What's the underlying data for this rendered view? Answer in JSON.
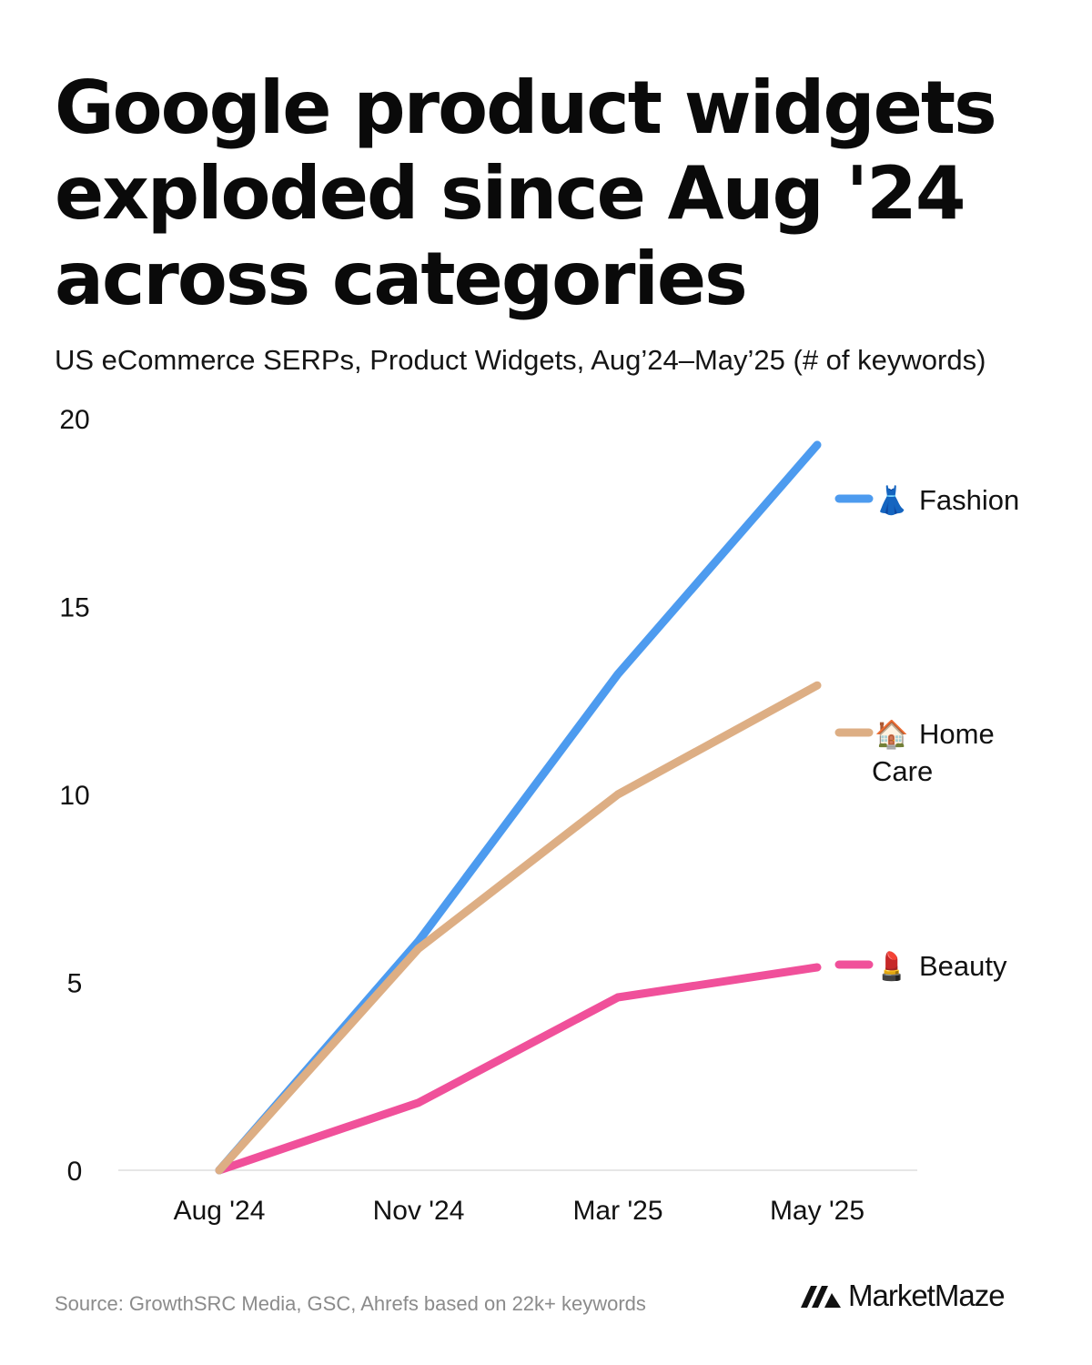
{
  "title": "Google product widgets exploded since Aug '24 across categories",
  "subtitle": "US eCommerce SERPs, Product Widgets, Aug’24–May’25 (# of keywords)",
  "source": "Source: GrowthSRC Media, GSC, Ahrefs based on 22k+ keywords",
  "brand": {
    "name": "MarketMaze",
    "icon": "marketmaze-logo-icon"
  },
  "colors": {
    "fashion": "#4d9bef",
    "home_care": "#ddae84",
    "beauty": "#f0509a",
    "axis": "#dddddd",
    "text": "#111111"
  },
  "chart_data": {
    "type": "line",
    "title": "Google product widgets exploded since Aug '24 across categories",
    "subtitle": "US eCommerce SERPs, Product Widgets, Aug’24–May’25 (# of keywords)",
    "xlabel": "",
    "ylabel": "",
    "categories": [
      "Aug '24",
      "Nov '24",
      "Mar '25",
      "May '25"
    ],
    "ylim": [
      0,
      20
    ],
    "yticks": [
      0,
      5,
      10,
      15,
      20
    ],
    "grid": false,
    "legend": "inline-right",
    "series": [
      {
        "key": "fashion",
        "name": "Fashion",
        "emoji": "👗",
        "icon": "dress-icon",
        "label_lines": [
          "Fashion"
        ],
        "values": [
          0,
          6.1,
          13.2,
          19.3
        ]
      },
      {
        "key": "home_care",
        "name": "Home Care",
        "emoji": "🏠",
        "icon": "house-icon",
        "label_lines": [
          "Home",
          "Care"
        ],
        "values": [
          0,
          5.9,
          10.0,
          12.9
        ]
      },
      {
        "key": "beauty",
        "name": "Beauty",
        "emoji": "💄",
        "icon": "lipstick-icon",
        "label_lines": [
          "Beauty"
        ],
        "values": [
          0,
          1.8,
          4.6,
          5.4
        ]
      }
    ]
  }
}
